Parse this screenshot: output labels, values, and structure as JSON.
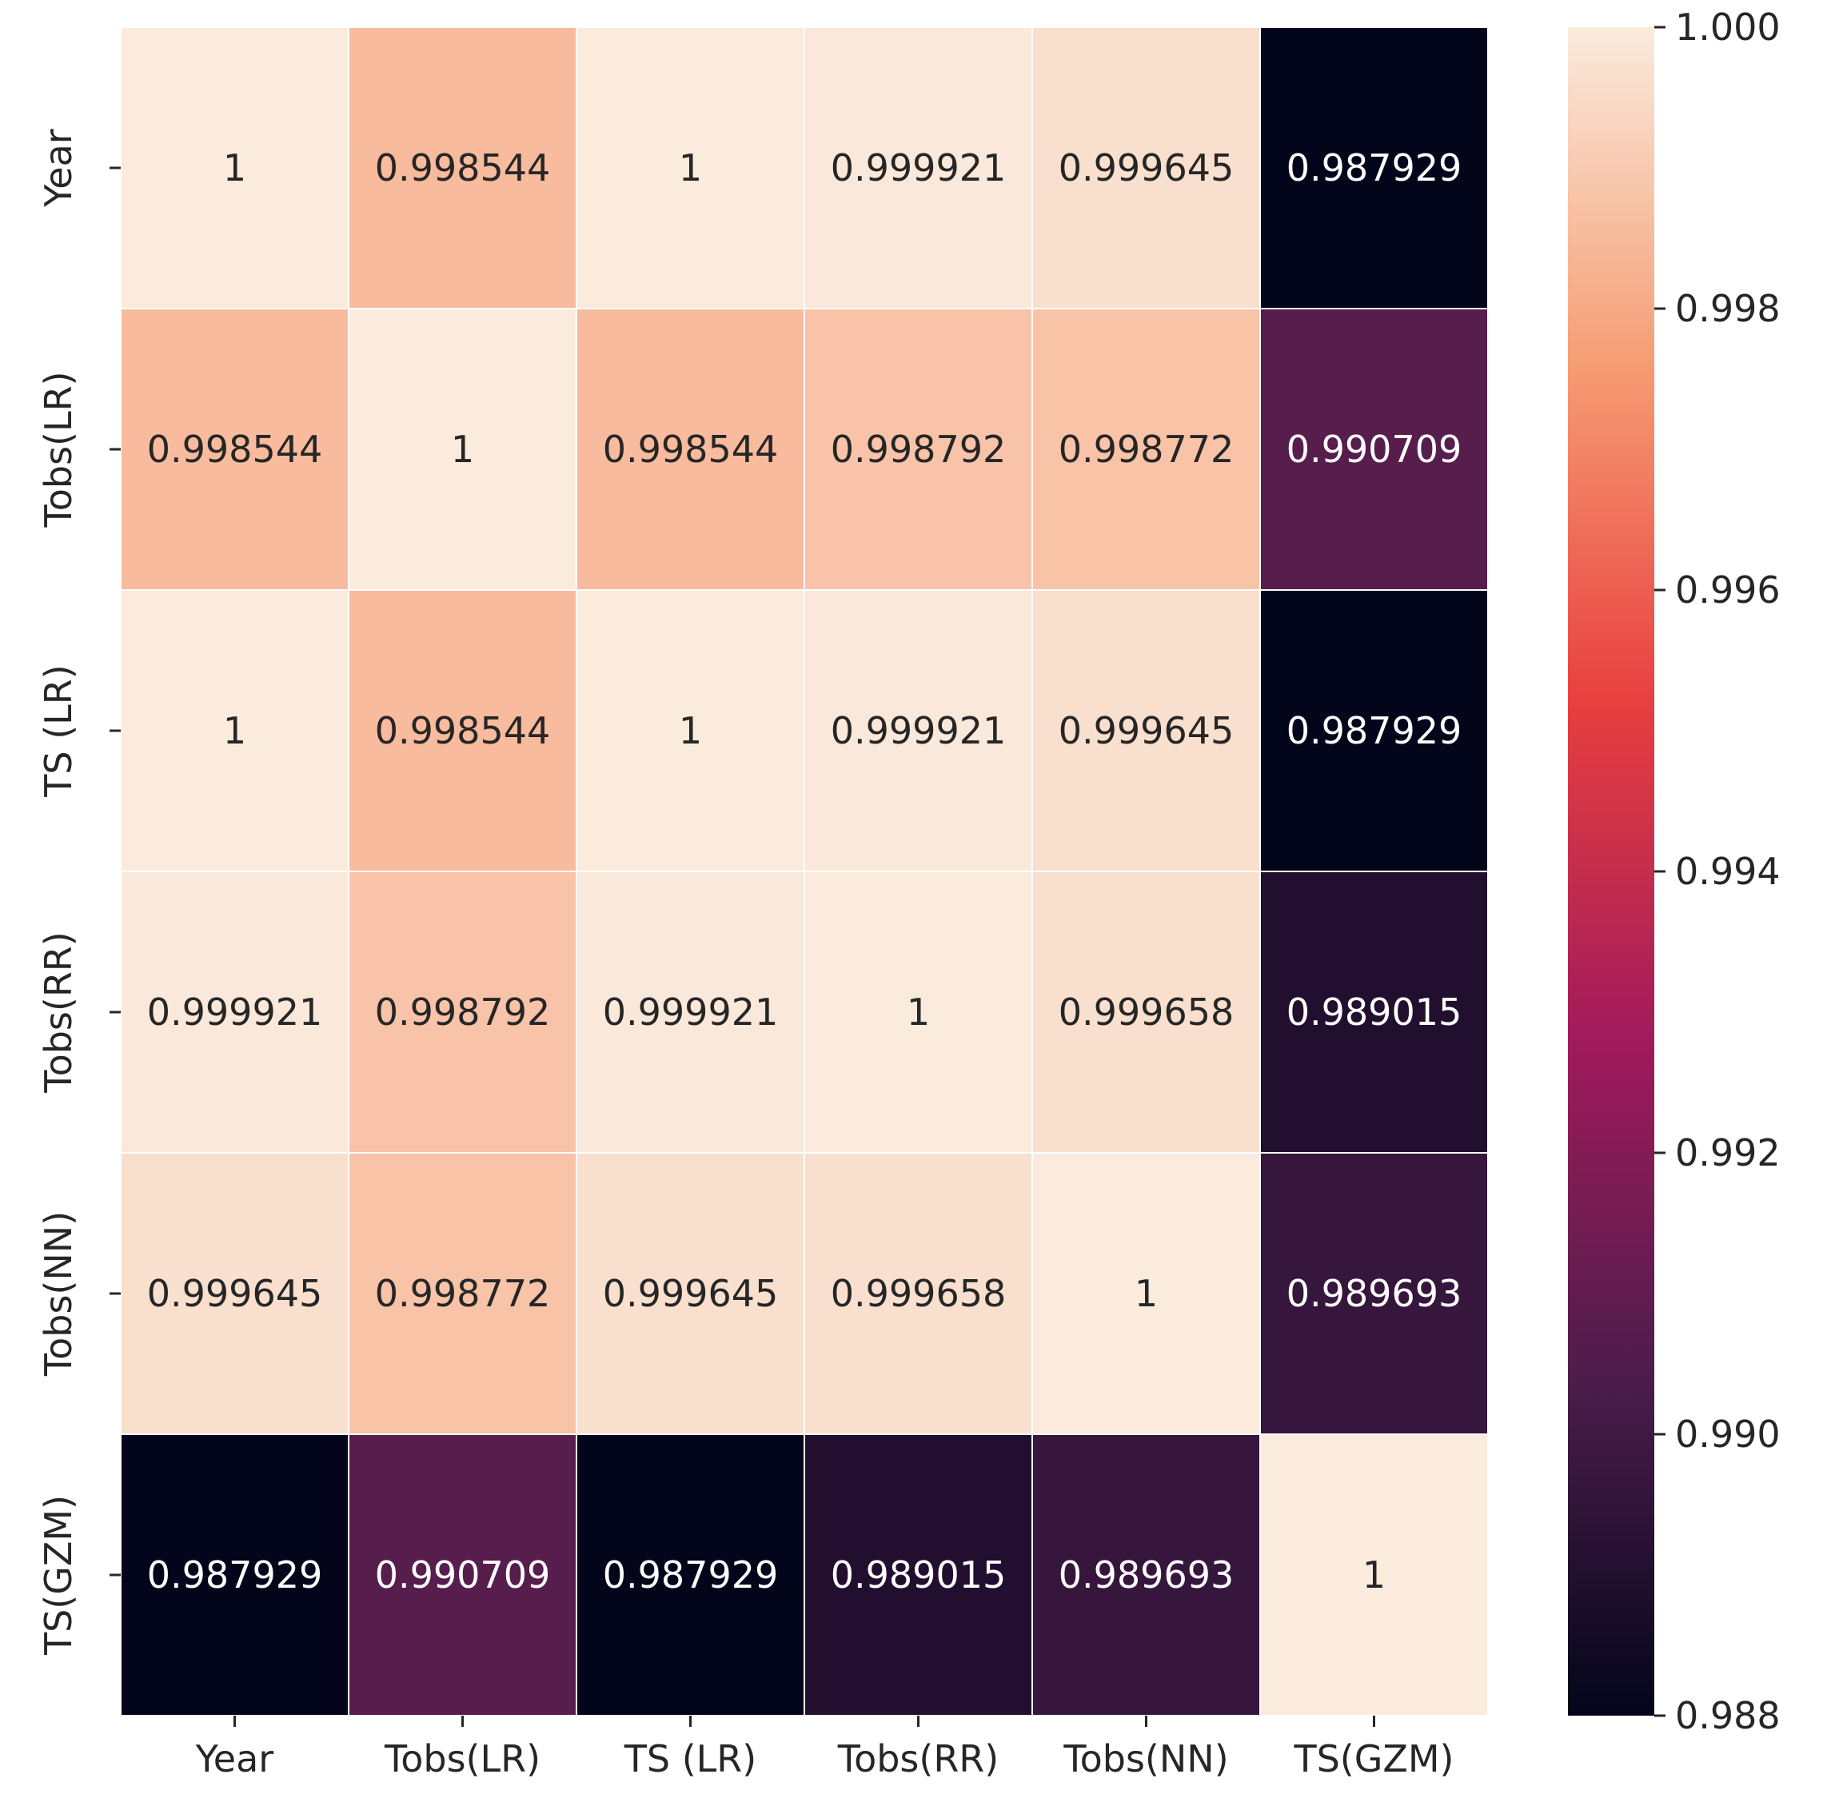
{
  "chart_data": {
    "type": "heatmap",
    "title": "",
    "xlabel": "",
    "ylabel": "",
    "x_categories": [
      "Year",
      "Tobs(LR)",
      "TS (LR)",
      "Tobs(RR)",
      "Tobs(NN)",
      "TS(GZM)"
    ],
    "y_categories": [
      "Year",
      "Tobs(LR)",
      "TS (LR)",
      "Tobs(RR)",
      "Tobs(NN)",
      "TS(GZM)"
    ],
    "values": [
      [
        1,
        0.998544,
        1,
        0.999921,
        0.999645,
        0.987929
      ],
      [
        0.998544,
        1,
        0.998544,
        0.998792,
        0.998772,
        0.990709
      ],
      [
        1,
        0.998544,
        1,
        0.999921,
        0.999645,
        0.987929
      ],
      [
        0.999921,
        0.998792,
        0.999921,
        1,
        0.999658,
        0.989015
      ],
      [
        0.999645,
        0.998772,
        0.999645,
        0.999658,
        1,
        0.989693
      ],
      [
        0.987929,
        0.990709,
        0.987929,
        0.989015,
        0.989693,
        1
      ]
    ],
    "cell_labels": [
      [
        "1",
        "0.998544",
        "1",
        "0.999921",
        "0.999645",
        "0.987929"
      ],
      [
        "0.998544",
        "1",
        "0.998544",
        "0.998792",
        "0.998772",
        "0.990709"
      ],
      [
        "1",
        "0.998544",
        "1",
        "0.999921",
        "0.999645",
        "0.987929"
      ],
      [
        "0.999921",
        "0.998792",
        "0.999921",
        "1",
        "0.999658",
        "0.989015"
      ],
      [
        "0.999645",
        "0.998772",
        "0.999645",
        "0.999658",
        "1",
        "0.989693"
      ],
      [
        "0.987929",
        "0.990709",
        "0.987929",
        "0.989015",
        "0.989693",
        "1"
      ]
    ],
    "colorbar": {
      "min": 0.988,
      "max": 1.0,
      "ticks": [
        1.0,
        0.998,
        0.996,
        0.994,
        0.992,
        0.99,
        0.988
      ],
      "tick_labels": [
        "1.000",
        "0.998",
        "0.996",
        "0.994",
        "0.992",
        "0.990",
        "0.988"
      ]
    },
    "colormap": "rocket",
    "colormap_stops": [
      "#03051a",
      "#4c1d4b",
      "#a11a5b",
      "#e83f3f",
      "#f69c73",
      "#faebdd"
    ],
    "grid_line_color": "#ffffff"
  }
}
